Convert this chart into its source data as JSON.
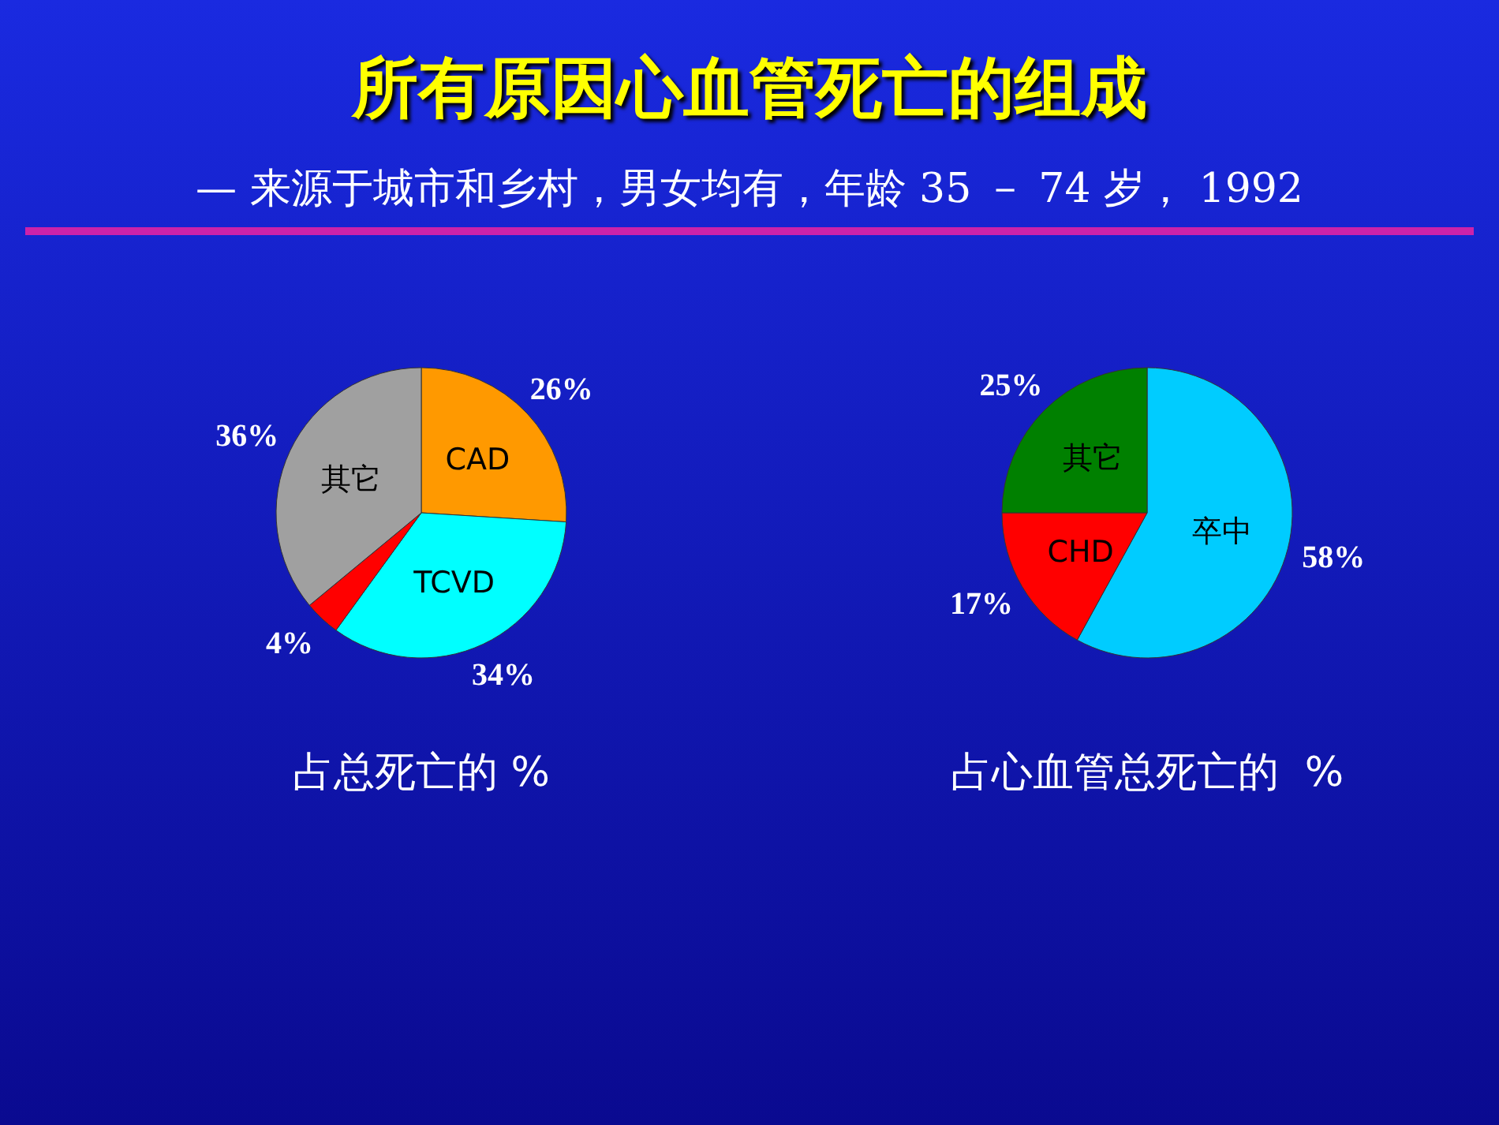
{
  "chart_data": [
    {
      "type": "pie",
      "title": "所有原因心血管死亡的组成",
      "subtitle": "— 来源于城市和乡村，男女均有，年龄 35 － 74 岁， 1992",
      "categories": [
        "CAD",
        "TCVD",
        null,
        "其它"
      ],
      "values": [
        26,
        34,
        4,
        36
      ],
      "colors": [
        "#ff9900",
        "#00ffff",
        "#ff0000",
        "#a0a0a0"
      ],
      "value_labels": [
        "26%",
        "34%",
        "4%",
        "36%"
      ],
      "annotations": [
        "占总死亡的 %"
      ]
    },
    {
      "type": "pie",
      "categories": [
        "卒中",
        "CHD",
        "其它"
      ],
      "values": [
        58,
        17,
        25
      ],
      "colors": [
        "#00ccff",
        "#ff0000",
        "#008000"
      ],
      "value_labels": [
        "58%",
        "17%",
        "25%"
      ],
      "annotations": [
        "占心血管总死亡的  %"
      ]
    }
  ]
}
